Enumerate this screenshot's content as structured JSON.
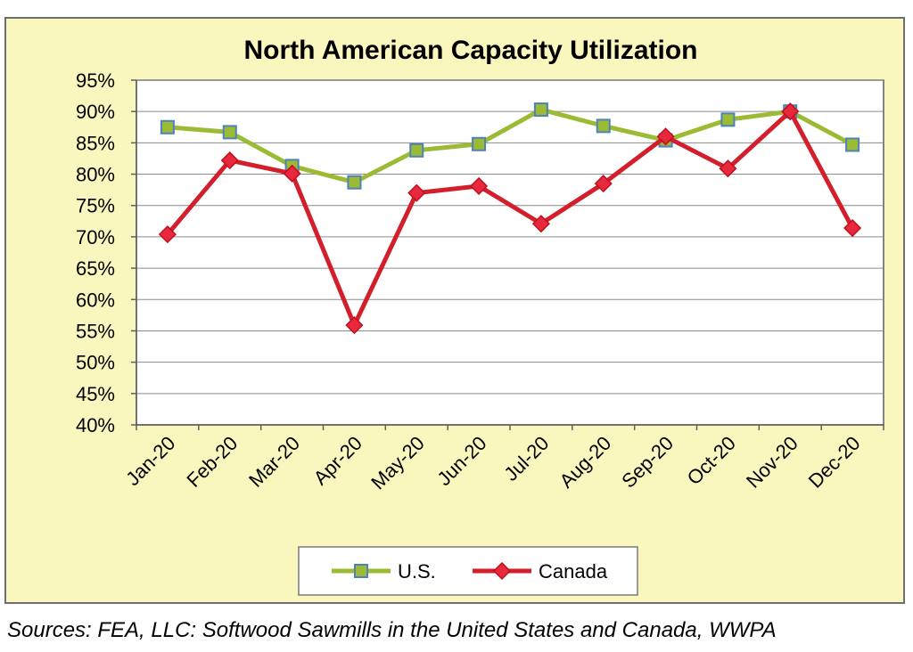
{
  "chart_data": {
    "type": "line",
    "title": "North American Capacity Utilization",
    "categories": [
      "Jan-20",
      "Feb-20",
      "Mar-20",
      "Apr-20",
      "May-20",
      "Jun-20",
      "Jul-20",
      "Aug-20",
      "Sep-20",
      "Oct-20",
      "Nov-20",
      "Dec-20"
    ],
    "y_ticks": [
      "40%",
      "45%",
      "50%",
      "55%",
      "60%",
      "65%",
      "70%",
      "75%",
      "80%",
      "85%",
      "90%",
      "95%"
    ],
    "ylim": [
      40,
      95
    ],
    "y_tick_step": 5,
    "grid": true,
    "legend_position": "bottom-center",
    "series": [
      {
        "name": "U.S.",
        "marker": "square",
        "color": "#9BBB35",
        "marker_fill": "#9BBB35",
        "marker_stroke": "#4F81BD",
        "values": [
          87.5,
          86.7,
          81.3,
          78.7,
          83.8,
          84.8,
          90.3,
          87.7,
          85.4,
          88.7,
          90.0,
          84.7
        ]
      },
      {
        "name": "Canada",
        "marker": "diamond",
        "color": "#D21F2B",
        "marker_fill": "#E8283C",
        "marker_stroke": "#C0101E",
        "values": [
          70.4,
          82.2,
          80.1,
          55.9,
          77.0,
          78.1,
          72.1,
          78.5,
          86.0,
          80.9,
          90.0,
          71.4
        ]
      }
    ],
    "xlabel": "",
    "ylabel": ""
  },
  "colors": {
    "background": "#FAF7BE",
    "plot_background": "#FFFFFF",
    "frame_border": "#6E6E6E",
    "gridline": "#8C8C8C"
  },
  "footer": {
    "source": "Sources: FEA, LLC: Softwood Sawmills in the United States and Canada, WWPA"
  }
}
